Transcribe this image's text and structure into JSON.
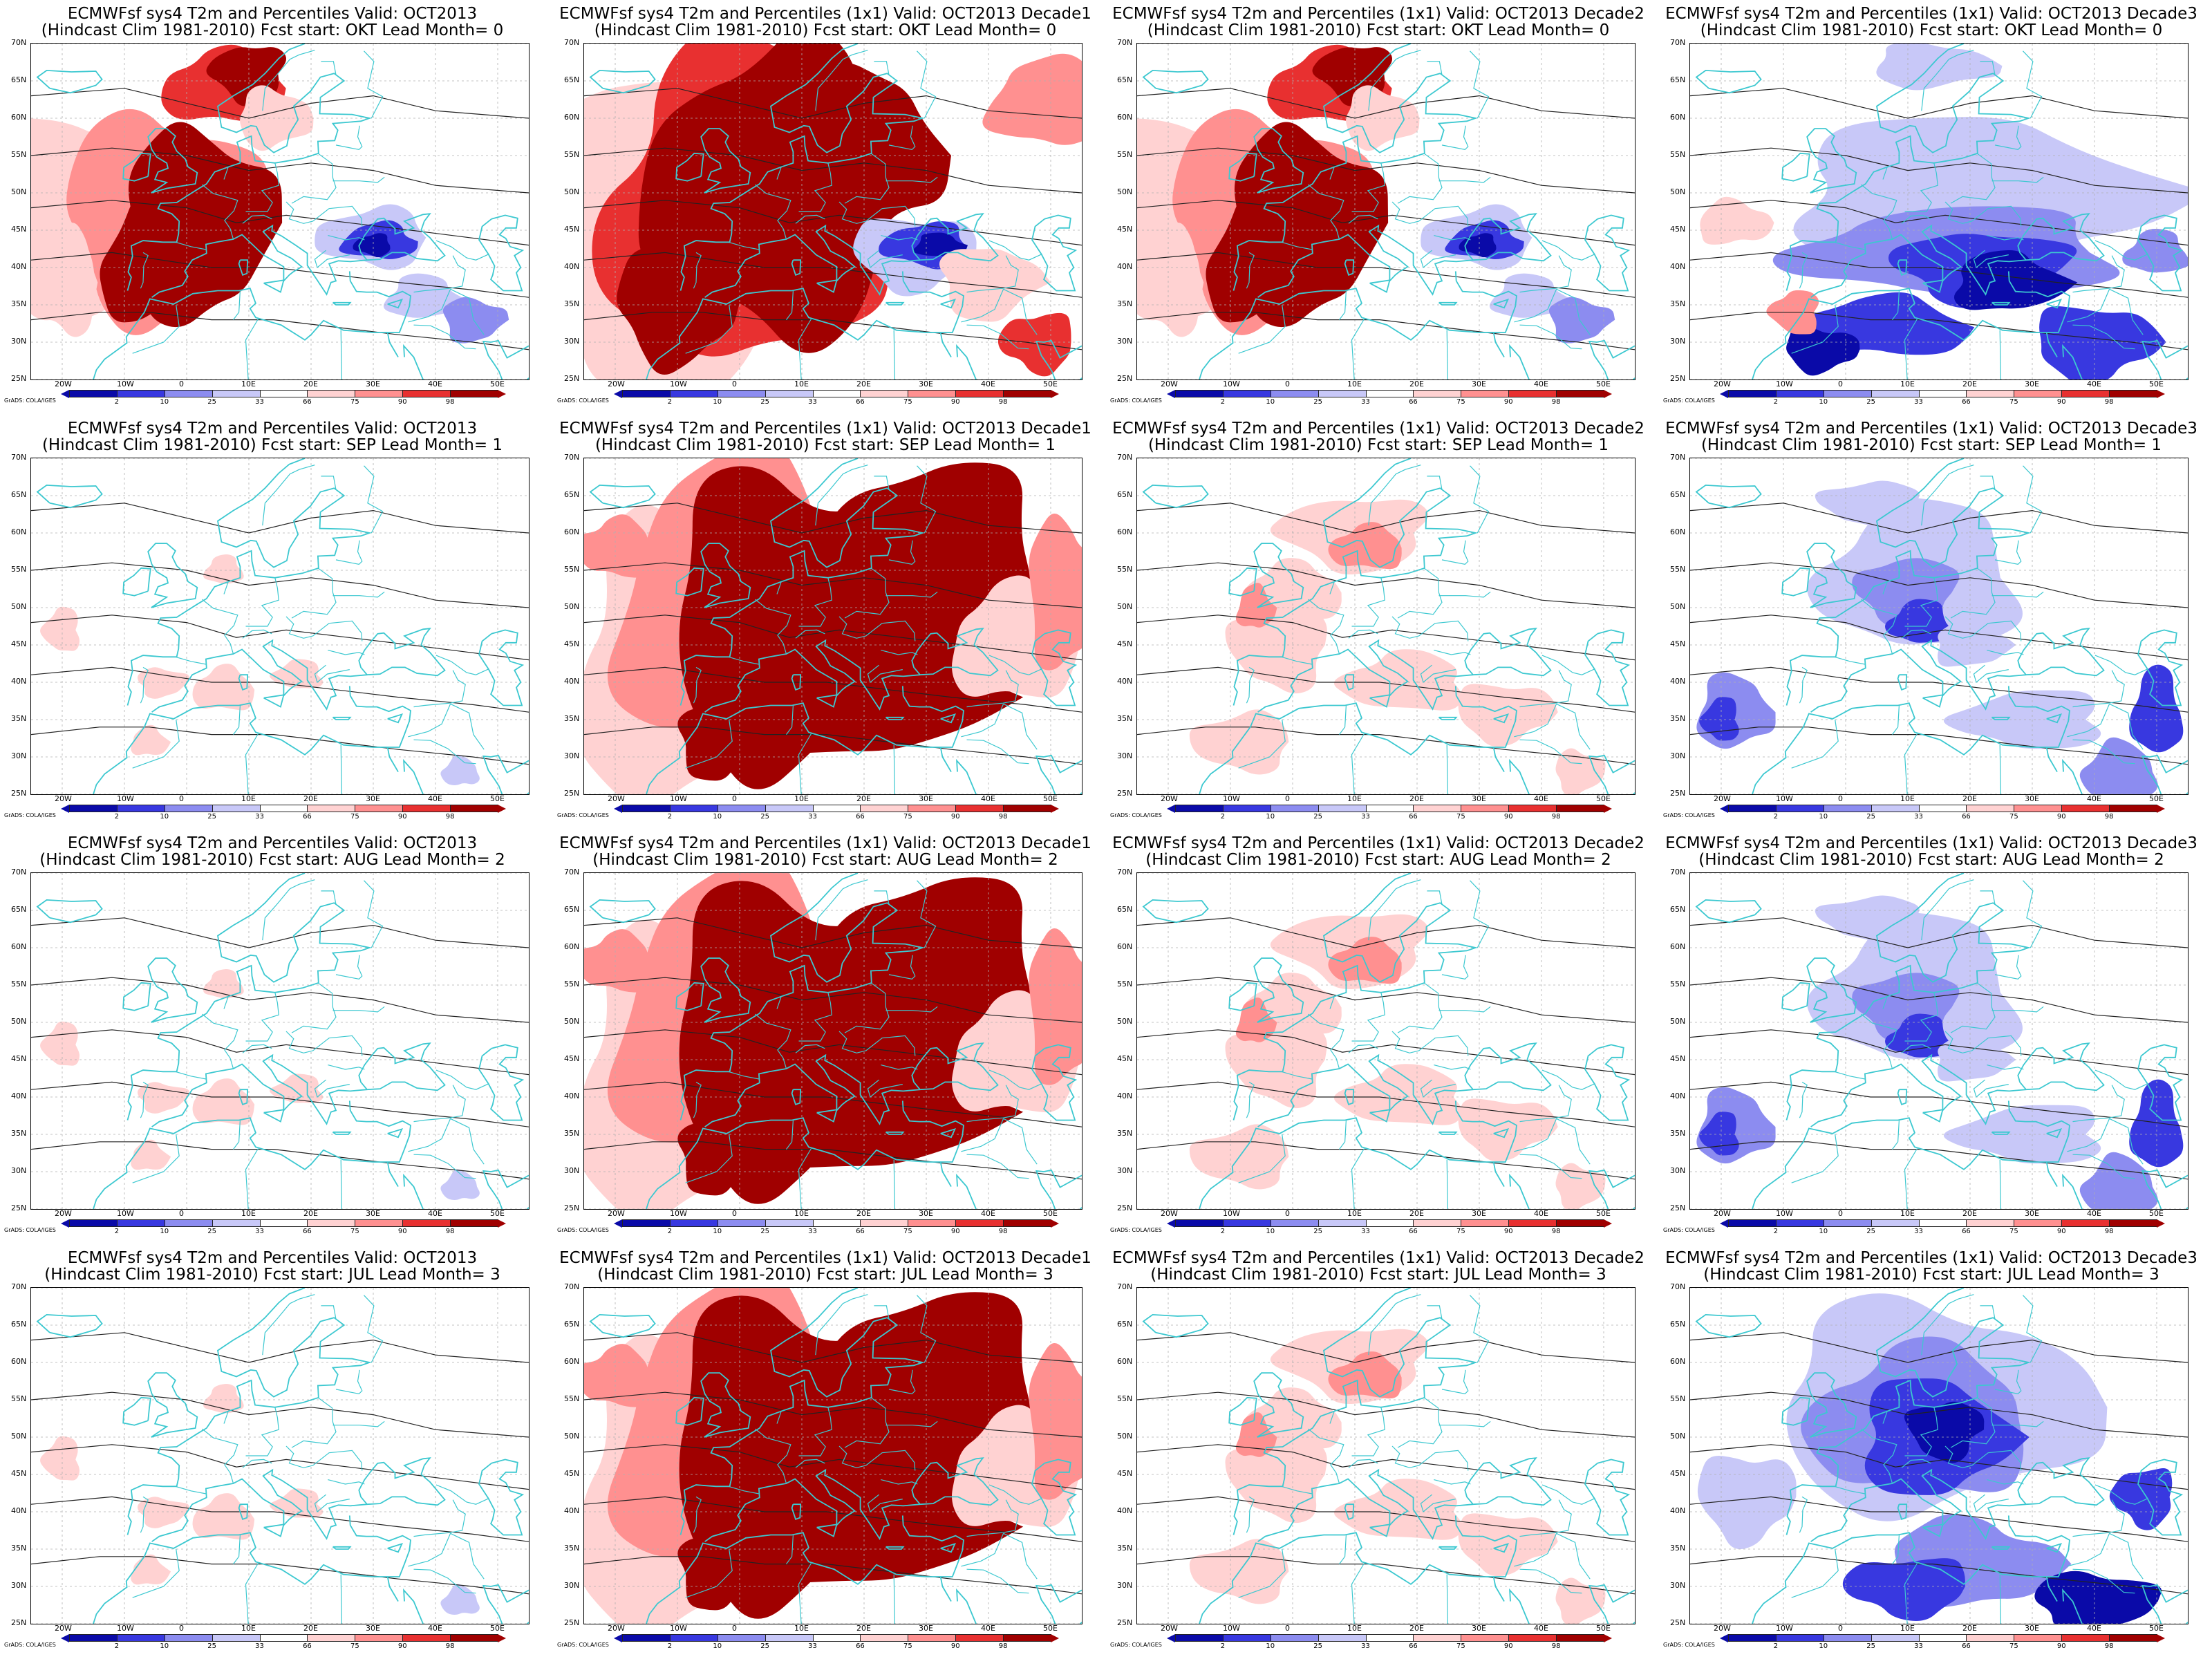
{
  "colors": {
    "p2": "#0a0aa8",
    "p10": "#3838e0",
    "p25": "#8c8cf0",
    "p33": "#c8c8f8",
    "p66": "#ffffff",
    "p75": "#ffd2d2",
    "p90": "#ff9090",
    "p98": "#e83030",
    "p100": "#a00000",
    "coast": "#3cc8d0",
    "contour": "#222222"
  },
  "colorbar": {
    "ticks": [
      "2",
      "10",
      "25",
      "33",
      "66",
      "75",
      "90",
      "98"
    ],
    "classes": [
      "p2",
      "p10",
      "p25",
      "p33",
      "p66",
      "p75",
      "p90",
      "p98",
      "p100"
    ]
  },
  "credit": "GrADS: COLA/IGES",
  "axes": {
    "lat_labels": [
      "70N",
      "65N",
      "60N",
      "55N",
      "50N",
      "45N",
      "40N",
      "35N",
      "30N",
      "25N"
    ],
    "lon_labels": [
      "20W",
      "10W",
      "0",
      "10E",
      "20E",
      "30E",
      "40E",
      "50E"
    ]
  },
  "panels": [
    {
      "line1": "ECMWFsf sys4   T2m and Percentiles Valid: OCT2013",
      "line2": "(Hindcast Clim 1981-2010) Fcst start: OKT  Lead Month= 0",
      "pattern": "warm-west-cold-east"
    },
    {
      "line1": "ECMWFsf sys4  T2m and Percentiles (1x1) Valid: OCT2013 Decade1",
      "line2": "(Hindcast Clim 1981-2010) Fcst start: OKT  Lead Month= 0",
      "pattern": "very-warm-with-cold-blacksea"
    },
    {
      "line1": "ECMWFsf sys4  T2m and Percentiles (1x1) Valid: OCT2013 Decade2",
      "line2": "(Hindcast Clim 1981-2010) Fcst start: OKT  Lead Month= 0",
      "pattern": "warm-west-cold-east"
    },
    {
      "line1": "ECMWFsf sys4  T2m and Percentiles (1x1) Valid: OCT2013 Decade3",
      "line2": "(Hindcast Clim 1981-2010) Fcst start: OKT  Lead Month= 0",
      "pattern": "cold-south"
    },
    {
      "line1": "ECMWFsf sys4   T2m and Percentiles Valid: OCT2013",
      "line2": "(Hindcast Clim 1981-2010) Fcst start: SEP  Lead Month= 1",
      "pattern": "mostly-neutral"
    },
    {
      "line1": "ECMWFsf sys4  T2m and Percentiles (1x1) Valid: OCT2013 Decade1",
      "line2": "(Hindcast Clim 1981-2010) Fcst start: SEP  Lead Month= 1",
      "pattern": "very-warm"
    },
    {
      "line1": "ECMWFsf sys4  T2m and Percentiles (1x1) Valid: OCT2013 Decade2",
      "line2": "(Hindcast Clim 1981-2010) Fcst start: SEP  Lead Month= 1",
      "pattern": "light-warm"
    },
    {
      "line1": "ECMWFsf sys4  T2m and Percentiles (1x1) Valid: OCT2013 Decade3",
      "line2": "(Hindcast Clim 1981-2010) Fcst start: SEP  Lead Month= 1",
      "pattern": "cold-mixed"
    },
    {
      "line1": "ECMWFsf sys4   T2m and Percentiles Valid: OCT2013",
      "line2": "(Hindcast Clim 1981-2010) Fcst start: AUG  Lead Month= 2",
      "pattern": "mostly-neutral"
    },
    {
      "line1": "ECMWFsf sys4  T2m and Percentiles (1x1) Valid: OCT2013 Decade1",
      "line2": "(Hindcast Clim 1981-2010) Fcst start: AUG  Lead Month= 2",
      "pattern": "very-warm"
    },
    {
      "line1": "ECMWFsf sys4  T2m and Percentiles (1x1) Valid: OCT2013 Decade2",
      "line2": "(Hindcast Clim 1981-2010) Fcst start: AUG  Lead Month= 2",
      "pattern": "light-warm"
    },
    {
      "line1": "ECMWFsf sys4  T2m and Percentiles (1x1) Valid: OCT2013 Decade3",
      "line2": "(Hindcast Clim 1981-2010) Fcst start: AUG  Lead Month= 2",
      "pattern": "cold-mixed"
    },
    {
      "line1": "ECMWFsf sys4   T2m and Percentiles Valid: OCT2013",
      "line2": "(Hindcast Clim 1981-2010) Fcst start: JUL  Lead Month= 3",
      "pattern": "mostly-neutral"
    },
    {
      "line1": "ECMWFsf sys4  T2m and Percentiles (1x1) Valid: OCT2013 Decade1",
      "line2": "(Hindcast Clim 1981-2010) Fcst start: JUL  Lead Month= 3",
      "pattern": "very-warm"
    },
    {
      "line1": "ECMWFsf sys4  T2m and Percentiles (1x1) Valid: OCT2013 Decade2",
      "line2": "(Hindcast Clim 1981-2010) Fcst start: JUL  Lead Month= 3",
      "pattern": "light-warm"
    },
    {
      "line1": "ECMWFsf sys4  T2m and Percentiles (1x1) Valid: OCT2013 Decade3",
      "line2": "(Hindcast Clim 1981-2010) Fcst start: JUL  Lead Month= 3",
      "pattern": "cold-center"
    }
  ]
}
